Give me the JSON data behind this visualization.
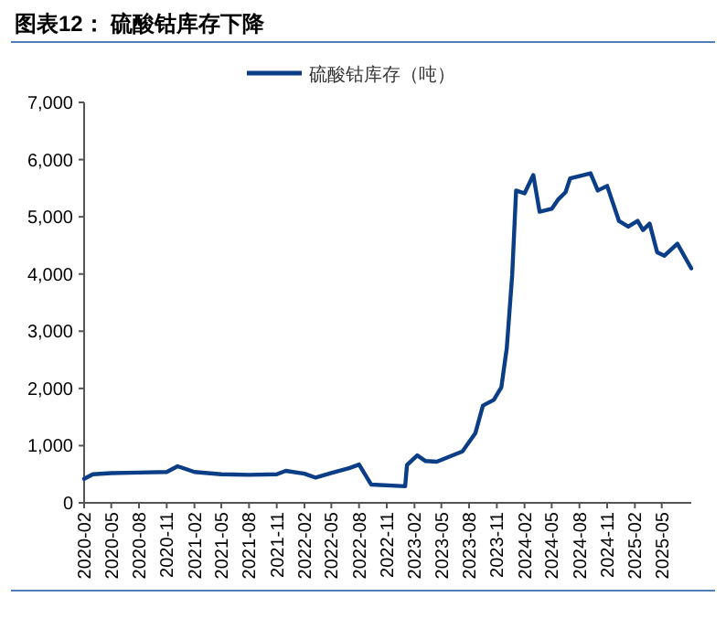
{
  "chart_data": {
    "type": "line",
    "title": "图表12：  硫酸钴库存下降",
    "x": [
      "2020-02-01",
      "2020-03-01",
      "2020-05-01",
      "2020-08-01",
      "2020-11-01",
      "2020-12-07",
      "2021-02-01",
      "2021-05-01",
      "2021-08-01",
      "2021-11-01",
      "2021-12-01",
      "2022-02-01",
      "2022-03-10",
      "2022-05-01",
      "2022-07-01",
      "2022-08-01",
      "2022-09-10",
      "2023-01-01",
      "2023-01-07",
      "2023-02-10",
      "2023-03-10",
      "2023-04-16",
      "2023-07-10",
      "2023-08-22",
      "2023-09-16",
      "2023-10-22",
      "2023-11-16",
      "2023-12-04",
      "2023-12-22",
      "2024-01-04",
      "2024-02-01",
      "2024-03-01",
      "2024-03-22",
      "2024-05-01",
      "2024-05-22",
      "2024-06-16",
      "2024-07-01",
      "2024-09-07",
      "2024-10-01",
      "2024-11-01",
      "2024-12-10",
      "2025-01-10",
      "2025-02-10",
      "2025-02-28",
      "2025-03-22",
      "2025-04-16",
      "2025-05-10",
      "2025-06-22",
      "2025-08-07"
    ],
    "series": [
      {
        "name": "硫酸钴库存（吨）",
        "color": "#0b3e86",
        "values": [
          420,
          500,
          520,
          530,
          540,
          640,
          540,
          500,
          490,
          500,
          560,
          510,
          440,
          520,
          610,
          670,
          320,
          290,
          660,
          830,
          730,
          720,
          900,
          1220,
          1700,
          1800,
          2020,
          2700,
          3980,
          5460,
          5410,
          5730,
          5090,
          5140,
          5300,
          5430,
          5670,
          5760,
          5460,
          5540,
          4930,
          4830,
          4930,
          4770,
          4880,
          4380,
          4320,
          4530,
          4100
        ]
      }
    ],
    "xlim": [
      "2020-02-01",
      "2025-08-07"
    ],
    "ylim": [
      0,
      7000
    ],
    "xticks": [
      "2020-02",
      "2020-05",
      "2020-08",
      "2020-11",
      "2021-02",
      "2021-05",
      "2021-08",
      "2021-11",
      "2022-02",
      "2022-05",
      "2022-08",
      "2022-11",
      "2023-02",
      "2023-05",
      "2023-08",
      "2023-11",
      "2024-02",
      "2024-05",
      "2024-08",
      "2024-11",
      "2025-02",
      "2025-05"
    ],
    "yticks": [
      0,
      {
        "value": 1000,
        "label": "1,000"
      },
      {
        "value": 2000,
        "label": "2,000"
      },
      {
        "value": 3000,
        "label": "3,000"
      },
      {
        "value": 4000,
        "label": "4,000"
      },
      {
        "value": 5000,
        "label": "5,000"
      },
      {
        "value": 6000,
        "label": "6,000"
      },
      {
        "value": 7000,
        "label": "7,000"
      }
    ],
    "legend": "top"
  }
}
